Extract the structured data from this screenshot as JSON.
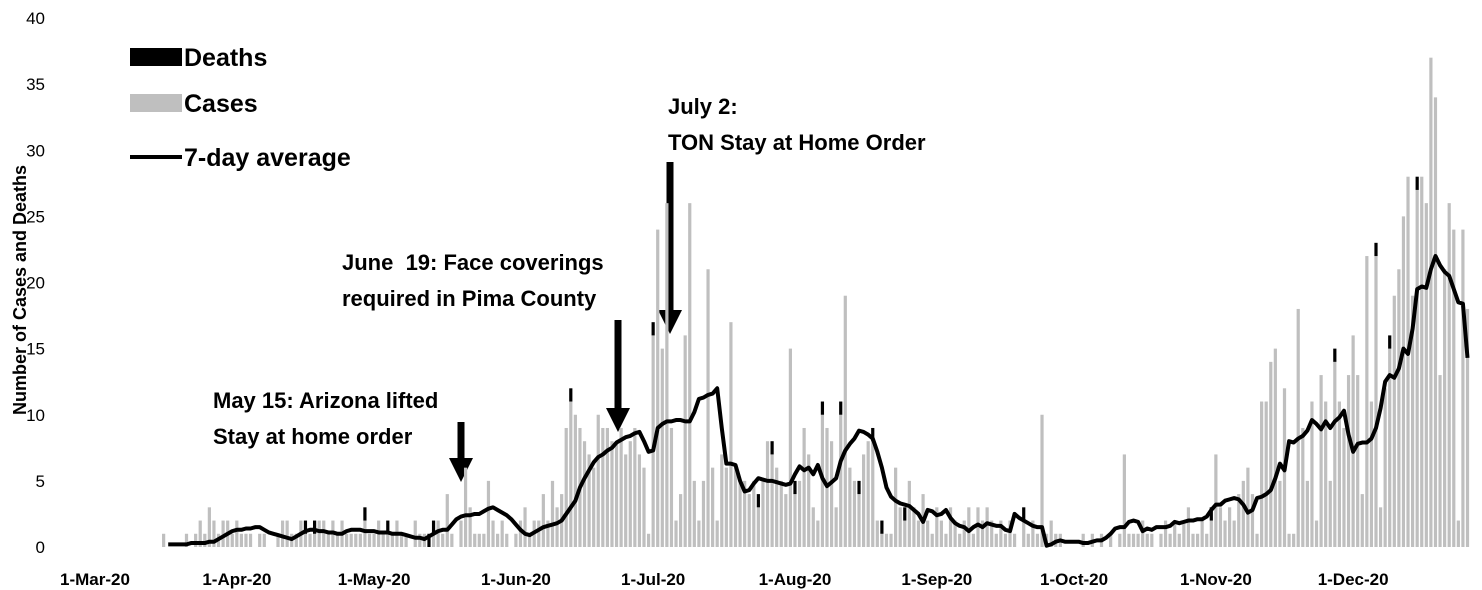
{
  "chart_data": {
    "type": "stacked-bar-line",
    "ylabel": "Number of Cases and Deaths",
    "ylim": [
      0,
      40
    ],
    "yticks": [
      0,
      5,
      10,
      15,
      20,
      25,
      30,
      35,
      40
    ],
    "grid": false,
    "legend": "upper-left",
    "categories": [
      "1-Mar-20",
      null,
      null,
      null,
      null,
      null,
      null,
      null,
      null,
      null,
      null,
      null,
      null,
      null,
      null,
      null,
      null,
      null,
      null,
      null,
      null,
      null,
      null,
      null,
      null,
      null,
      null,
      null,
      null,
      null,
      null,
      "1-Apr-20",
      null,
      null,
      null,
      null,
      null,
      null,
      null,
      null,
      null,
      null,
      null,
      null,
      null,
      null,
      null,
      null,
      null,
      null,
      null,
      null,
      null,
      null,
      null,
      null,
      null,
      null,
      null,
      null,
      null,
      "1-May-20",
      null,
      null,
      null,
      null,
      null,
      null,
      null,
      null,
      null,
      null,
      null,
      null,
      null,
      null,
      null,
      null,
      null,
      null,
      null,
      null,
      null,
      null,
      null,
      null,
      null,
      null,
      null,
      null,
      null,
      null,
      "1-Jun-20",
      null,
      null,
      null,
      null,
      null,
      null,
      null,
      null,
      null,
      null,
      null,
      null,
      null,
      null,
      null,
      null,
      null,
      null,
      null,
      null,
      null,
      null,
      null,
      null,
      null,
      null,
      null,
      null,
      null,
      "1-Jul-20",
      null,
      null,
      null,
      null,
      null,
      null,
      null,
      null,
      null,
      null,
      null,
      null,
      null,
      null,
      null,
      null,
      null,
      null,
      null,
      null,
      null,
      null,
      null,
      null,
      null,
      null,
      null,
      null,
      null,
      null,
      "1-Aug-20",
      null,
      null,
      null,
      null,
      null,
      null,
      null,
      null,
      null,
      null,
      null,
      null,
      null,
      null,
      null,
      null,
      null,
      null,
      null,
      null,
      null,
      null,
      null,
      null,
      null,
      null,
      null,
      null,
      null,
      null,
      "1-Sep-20",
      null,
      null,
      null,
      null,
      null,
      null,
      null,
      null,
      null,
      null,
      null,
      null,
      null,
      null,
      null,
      null,
      null,
      null,
      null,
      null,
      null,
      null,
      null,
      null,
      null,
      null,
      null,
      null,
      null,
      "1-Oct-20",
      null,
      null,
      null,
      null,
      null,
      null,
      null,
      null,
      null,
      null,
      null,
      null,
      null,
      null,
      null,
      null,
      null,
      null,
      null,
      null,
      null,
      null,
      null,
      null,
      null,
      null,
      null,
      null,
      null,
      null,
      "1-Nov-20",
      null,
      null,
      null,
      null,
      null,
      null,
      null,
      null,
      null,
      null,
      null,
      null,
      null,
      null,
      null,
      null,
      null,
      null,
      null,
      null,
      null,
      null,
      null,
      null,
      null,
      null,
      null,
      null,
      null,
      "1-Dec-20",
      null,
      null,
      null,
      null,
      null,
      null,
      null,
      null,
      null,
      null,
      null,
      null,
      null,
      null,
      null,
      null,
      null,
      null,
      null,
      null,
      null,
      null,
      null,
      null,
      null
    ],
    "series": [
      {
        "name": "Cases",
        "kind": "bar",
        "color": "#bfbfbf",
        "values": [
          0,
          0,
          0,
          0,
          0,
          0,
          0,
          0,
          0,
          0,
          0,
          0,
          0,
          0,
          0,
          1,
          0,
          0,
          0,
          0,
          1,
          0,
          1,
          2,
          1,
          3,
          2,
          1,
          2,
          2,
          1,
          2,
          1,
          1,
          1,
          0,
          1,
          1,
          0,
          0,
          1,
          2,
          2,
          1,
          1,
          2,
          1,
          1,
          1,
          2,
          2,
          1,
          2,
          1,
          2,
          1,
          1,
          1,
          1,
          2,
          1,
          1,
          2,
          1,
          1,
          1,
          2,
          1,
          1,
          0,
          2,
          1,
          1,
          0,
          1,
          2,
          1,
          4,
          1,
          0,
          2,
          6,
          3,
          1,
          1,
          1,
          5,
          2,
          1,
          2,
          1,
          0,
          1,
          2,
          3,
          1,
          2,
          2,
          4,
          2,
          5,
          3,
          4,
          9,
          11,
          10,
          9,
          8,
          7,
          6,
          10,
          9,
          9,
          8,
          8,
          9,
          7,
          8,
          9,
          7,
          6,
          1,
          16,
          24,
          15,
          26,
          9,
          2,
          4,
          16,
          26,
          5,
          2,
          5,
          21,
          6,
          2,
          7,
          6,
          17,
          6,
          5,
          5,
          4,
          5,
          3,
          5,
          8,
          7,
          6,
          5,
          4,
          15,
          4,
          5,
          9,
          7,
          3,
          2,
          10,
          9,
          8,
          3,
          10,
          19,
          6,
          5,
          4,
          7,
          8,
          8,
          2,
          1,
          1,
          1,
          6,
          3,
          2,
          5,
          3,
          2,
          4,
          2,
          1,
          3,
          2,
          1,
          3,
          2,
          1,
          2,
          3,
          1,
          3,
          2,
          3,
          2,
          1,
          2,
          1,
          2,
          1,
          0,
          2,
          1,
          2,
          1,
          10,
          1,
          2,
          1,
          1,
          0,
          0,
          0,
          0,
          1,
          0,
          1,
          0,
          1,
          0,
          1,
          0,
          1,
          7,
          1,
          1,
          1,
          2,
          1,
          1,
          0,
          1,
          2,
          1,
          2,
          1,
          2,
          3,
          1,
          1,
          2,
          1,
          2,
          7,
          3,
          2,
          3,
          2,
          4,
          5,
          6,
          4,
          1,
          11,
          11,
          14,
          15,
          5,
          12,
          1,
          1,
          18,
          9,
          5,
          11,
          2,
          13,
          11,
          5,
          14,
          11,
          9,
          13,
          16,
          13,
          4,
          22,
          11,
          22,
          3,
          12,
          15,
          19,
          21,
          25,
          28,
          19,
          27,
          28,
          26,
          37,
          34,
          13,
          21,
          26,
          24,
          2,
          24,
          18
        ]
      },
      {
        "name": "Deaths",
        "kind": "bar",
        "color": "#000000",
        "values": [
          0,
          0,
          0,
          0,
          0,
          0,
          0,
          0,
          0,
          0,
          0,
          0,
          0,
          0,
          0,
          0,
          0,
          0,
          0,
          0,
          0,
          0,
          0,
          0,
          0,
          0,
          0,
          0,
          0,
          0,
          0,
          0,
          0,
          0,
          0,
          0,
          0,
          0,
          0,
          0,
          0,
          0,
          0,
          0,
          0,
          0,
          1,
          0,
          1,
          0,
          0,
          0,
          0,
          0,
          0,
          0,
          0,
          0,
          0,
          1,
          0,
          0,
          0,
          0,
          1,
          0,
          0,
          0,
          0,
          0,
          0,
          0,
          0,
          1,
          1,
          0,
          0,
          0,
          0,
          0,
          0,
          0,
          0,
          0,
          0,
          0,
          0,
          0,
          0,
          0,
          0,
          0,
          0,
          0,
          0,
          0,
          0,
          0,
          0,
          0,
          0,
          0,
          0,
          0,
          1,
          0,
          0,
          0,
          0,
          0,
          0,
          0,
          0,
          0,
          0,
          0,
          0,
          0,
          0,
          0,
          0,
          0,
          1,
          0,
          0,
          0,
          0,
          0,
          0,
          0,
          0,
          0,
          0,
          0,
          0,
          0,
          0,
          0,
          0,
          0,
          0,
          0,
          0,
          0,
          0,
          1,
          0,
          0,
          1,
          0,
          0,
          0,
          0,
          1,
          0,
          0,
          0,
          0,
          0,
          1,
          0,
          0,
          0,
          1,
          0,
          0,
          0,
          1,
          0,
          0,
          1,
          0,
          1,
          0,
          0,
          0,
          0,
          1,
          0,
          0,
          0,
          0,
          0,
          0,
          0,
          0,
          0,
          0,
          0,
          0,
          0,
          0,
          0,
          0,
          0,
          0,
          0,
          0,
          0,
          0,
          0,
          0,
          0,
          1,
          0,
          0,
          0,
          0,
          0,
          0,
          0,
          0,
          0,
          0,
          0,
          0,
          0,
          0,
          0,
          0,
          0,
          0,
          0,
          0,
          0,
          0,
          0,
          0,
          0,
          0,
          0,
          0,
          0,
          0,
          0,
          0,
          0,
          0,
          0,
          0,
          0,
          0,
          0,
          0,
          1,
          0,
          0,
          0,
          0,
          0,
          0,
          0,
          0,
          0,
          0,
          0,
          0,
          0,
          0,
          0,
          0,
          0,
          0,
          0,
          0,
          0,
          0,
          0,
          0,
          0,
          0,
          1,
          0,
          0,
          0,
          0,
          0,
          0,
          0,
          0,
          1,
          0,
          0,
          1,
          0,
          0,
          0,
          0,
          0,
          1,
          0,
          0,
          0,
          0,
          0,
          0,
          0,
          0,
          0,
          0,
          0
        ]
      },
      {
        "name": "7-day average",
        "kind": "line",
        "color": "#000000",
        "values": [
          null,
          null,
          null,
          null,
          null,
          null,
          null,
          null,
          null,
          null,
          null,
          null,
          null,
          null,
          null,
          null,
          0.2,
          0.2,
          0.2,
          0.2,
          0.2,
          0.3,
          0.3,
          0.3,
          0.3,
          0.4,
          0.4,
          0.6,
          0.8,
          1.0,
          1.2,
          1.3,
          1.3,
          1.4,
          1.4,
          1.5,
          1.5,
          1.3,
          1.1,
          1.0,
          0.9,
          0.8,
          0.7,
          0.6,
          0.8,
          1.0,
          1.2,
          1.3,
          1.3,
          1.2,
          1.2,
          1.1,
          1.1,
          1.0,
          1.0,
          1.2,
          1.3,
          1.3,
          1.3,
          1.2,
          1.2,
          1.2,
          1.1,
          1.1,
          1.1,
          1.0,
          1.0,
          1.0,
          0.9,
          0.8,
          0.7,
          0.7,
          0.6,
          0.8,
          1.0,
          1.2,
          1.3,
          1.3,
          1.7,
          2.1,
          2.3,
          2.4,
          2.4,
          2.5,
          2.5,
          2.7,
          2.9,
          3.0,
          2.8,
          2.6,
          2.4,
          2.1,
          1.7,
          1.3,
          1.0,
          0.9,
          1.1,
          1.3,
          1.5,
          1.6,
          1.7,
          1.8,
          2.0,
          2.5,
          3.0,
          3.5,
          4.5,
          5.2,
          5.8,
          6.4,
          6.8,
          7.0,
          7.3,
          7.5,
          7.9,
          8.1,
          8.3,
          8.4,
          8.6,
          8.7,
          8.0,
          7.2,
          7.3,
          9.0,
          9.3,
          9.5,
          9.5,
          9.6,
          9.6,
          9.5,
          9.5,
          10.2,
          11.2,
          11.3,
          11.5,
          11.6,
          12.0,
          9.0,
          6.3,
          6.3,
          6.2,
          5.0,
          4.2,
          4.3,
          4.8,
          5.2,
          5.1,
          5.0,
          5.0,
          4.9,
          4.8,
          4.7,
          4.8,
          5.5,
          6.1,
          5.8,
          6.0,
          5.5,
          6.2,
          5.2,
          4.6,
          4.9,
          5.2,
          6.5,
          7.3,
          7.8,
          8.2,
          8.8,
          8.7,
          8.5,
          8.2,
          7.2,
          6.0,
          4.5,
          3.8,
          3.5,
          3.3,
          3.2,
          3.1,
          2.8,
          2.5,
          1.9,
          2.8,
          2.7,
          2.4,
          2.5,
          2.8,
          2.2,
          1.8,
          1.6,
          1.5,
          1.2,
          1.5,
          1.7,
          1.5,
          1.8,
          1.7,
          1.6,
          1.6,
          1.3,
          1.2,
          2.5,
          2.2,
          2.0,
          1.8,
          1.6,
          1.5,
          1.5,
          0.1,
          0.2,
          0.4,
          0.5,
          0.4,
          0.4,
          0.4,
          0.4,
          0.3,
          0.3,
          0.4,
          0.5,
          0.5,
          0.7,
          1.0,
          1.4,
          1.5,
          1.5,
          1.9,
          2.0,
          1.9,
          1.2,
          1.4,
          1.3,
          1.5,
          1.5,
          1.5,
          1.6,
          1.9,
          1.8,
          1.9,
          2.0,
          2.0,
          2.1,
          2.1,
          2.3,
          2.8,
          3.2,
          3.2,
          3.5,
          3.6,
          3.7,
          3.6,
          3.2,
          2.6,
          2.8,
          3.7,
          3.8,
          4.0,
          4.3,
          5.2,
          6.3,
          5.8,
          8.0,
          7.9,
          8.2,
          8.4,
          8.8,
          9.6,
          9.3,
          8.9,
          9.5,
          9.0,
          9.5,
          9.8,
          10.3,
          8.5,
          7.2,
          7.8,
          7.9,
          7.9,
          8.2,
          9.0,
          10.5,
          12.5,
          13.0,
          12.8,
          13.5,
          15.0,
          14.6,
          16.5,
          19.5,
          19.7,
          19.6,
          21.0,
          22.0,
          21.3,
          20.8,
          20.5,
          19.5,
          18.5,
          18.4,
          14.3
        ]
      }
    ],
    "annotations": [
      {
        "lines": [
          "May 15: Arizona lifted",
          "Stay at home order"
        ]
      },
      {
        "lines": [
          "June  19: Face coverings",
          "required in Pima County"
        ]
      },
      {
        "lines": [
          "July 2:",
          "TON Stay at Home Order"
        ]
      }
    ]
  }
}
